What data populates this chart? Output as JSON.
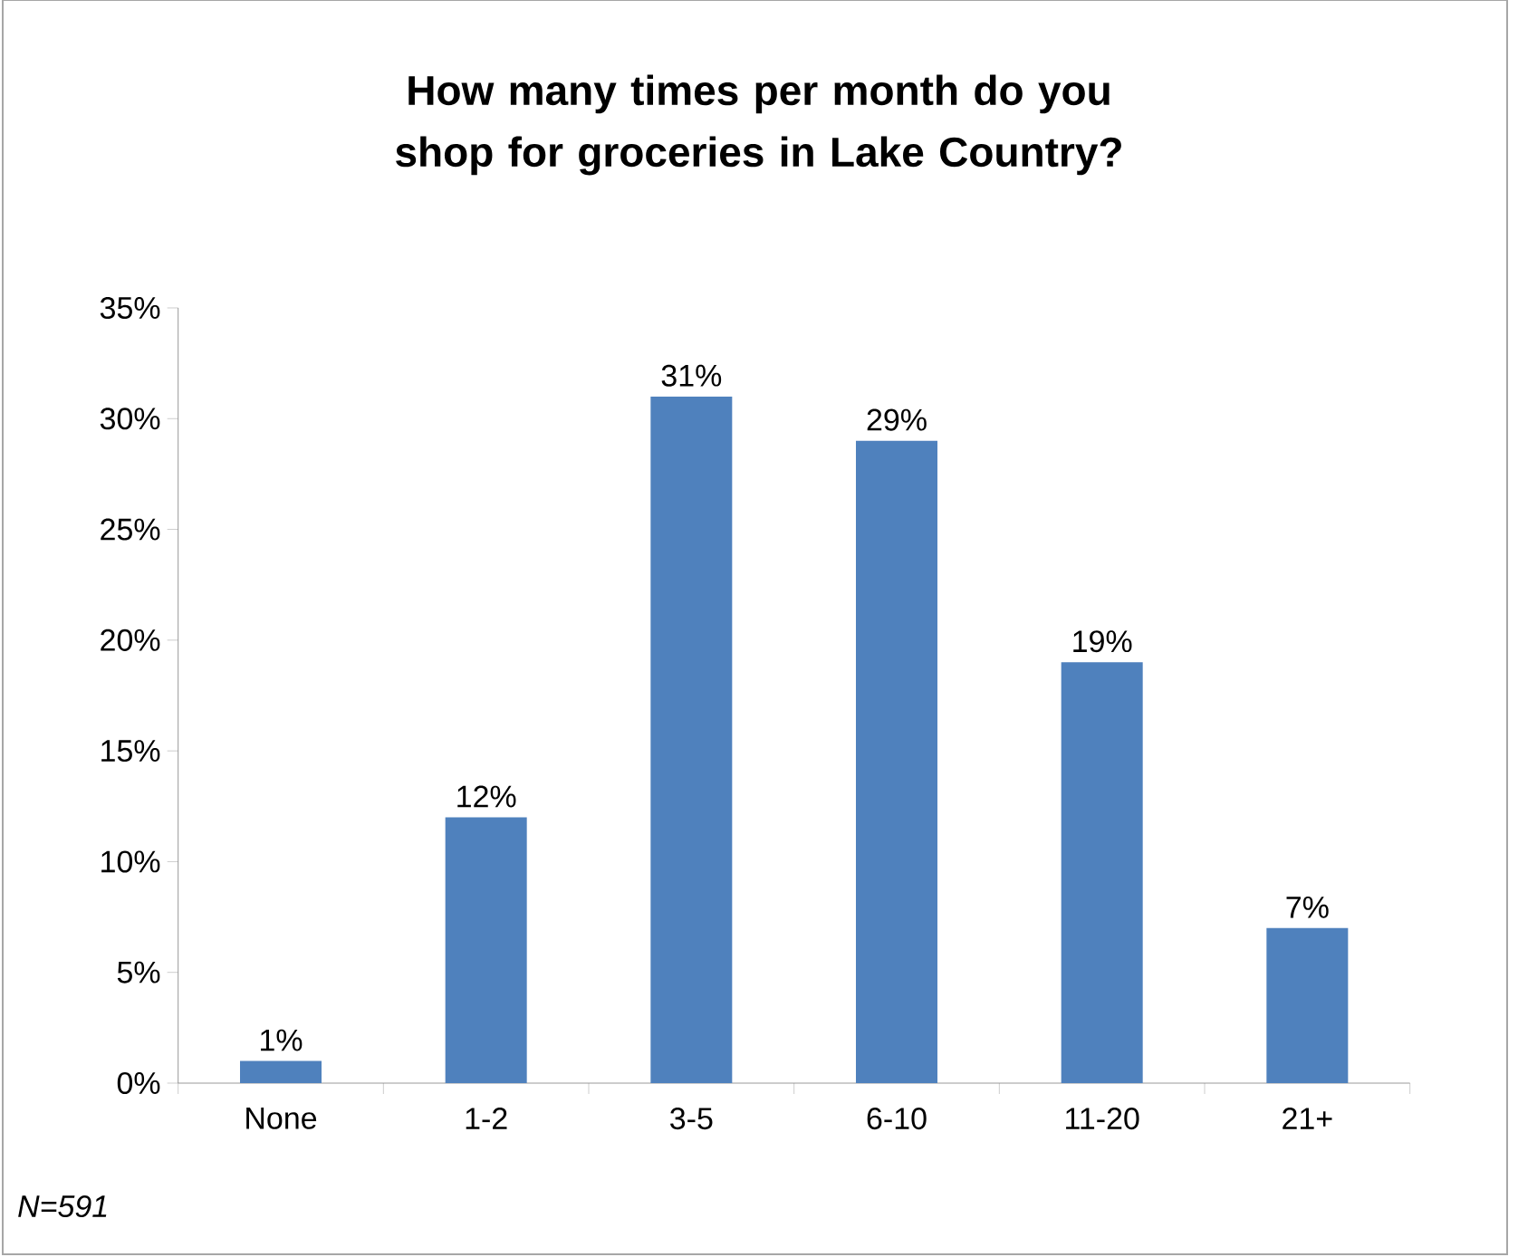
{
  "chart_data": {
    "type": "bar",
    "title": "How many times per month do you shop for groceries in Lake Country?",
    "categories": [
      "None",
      "1-2",
      "3-5",
      "6-10",
      "11-20",
      "21+"
    ],
    "values": [
      1,
      12,
      31,
      29,
      19,
      7
    ],
    "value_labels": [
      "1%",
      "12%",
      "31%",
      "29%",
      "19%",
      "7%"
    ],
    "color": "#4f81bd",
    "ylim": [
      0,
      35
    ],
    "yticks": [
      {
        "value": 0,
        "label": "0%"
      },
      {
        "value": 5,
        "label": "5%"
      },
      {
        "value": 10,
        "label": "10%"
      },
      {
        "value": 15,
        "label": "15%"
      },
      {
        "value": 20,
        "label": "20%"
      },
      {
        "value": 25,
        "label": "25%"
      },
      {
        "value": 30,
        "label": "30%"
      },
      {
        "value": 35,
        "label": "35%"
      }
    ],
    "annotations": [
      "N=591"
    ]
  }
}
